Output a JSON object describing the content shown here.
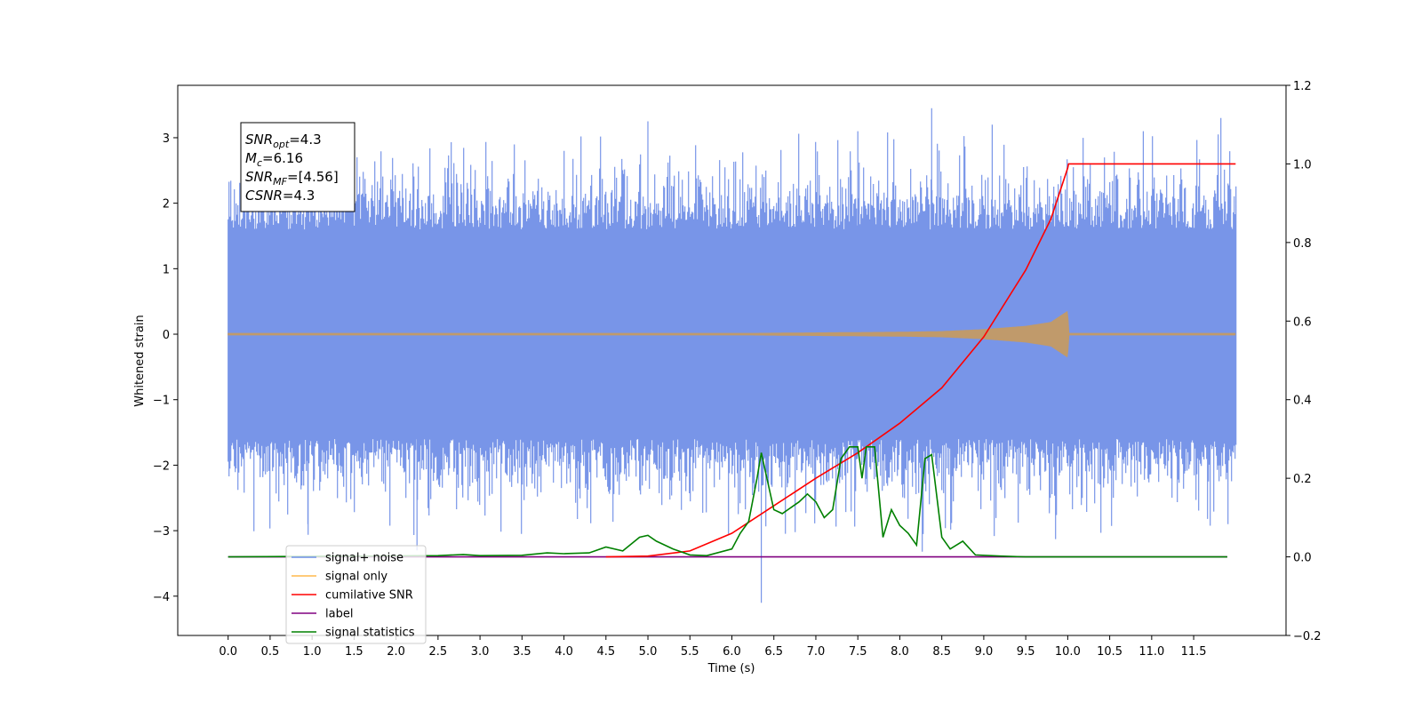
{
  "chart_data": {
    "type": "line",
    "xlabel": "Time (s)",
    "ylabel": "Whitened strain",
    "xlim": [
      -0.6,
      12.6
    ],
    "ylim": [
      -4.6,
      3.8
    ],
    "y2lim": [
      -0.2,
      1.2
    ],
    "x_ticks": [
      "0.0",
      "0.5",
      "1.0",
      "1.5",
      "2.0",
      "2.5",
      "3.0",
      "3.5",
      "4.0",
      "4.5",
      "5.0",
      "5.5",
      "6.0",
      "6.5",
      "7.0",
      "7.5",
      "8.0",
      "8.5",
      "9.0",
      "9.5",
      "10.0",
      "10.5",
      "11.0",
      "11.5"
    ],
    "y_ticks": [
      "3",
      "2",
      "1",
      "0",
      "−1",
      "−2",
      "−3",
      "−4"
    ],
    "y2_ticks": [
      "1.2",
      "1.0",
      "0.8",
      "0.6",
      "0.4",
      "0.2",
      "0.0",
      "−0.2"
    ],
    "annotation": {
      "lines": [
        {
          "base": "SNR",
          "sub": "opt",
          "value": "=4.3"
        },
        {
          "base": "M",
          "sub": "c",
          "value": "=6.16"
        },
        {
          "base": "SNR",
          "sub": "MF",
          "value": "=[4.56]"
        },
        {
          "base": "CSNR",
          "sub": "",
          "value": "=4.3"
        }
      ]
    },
    "legend": {
      "position": "lower-left",
      "entries": [
        {
          "label": "signal+ noise",
          "color": "#6f8fe6"
        },
        {
          "label": "signal only",
          "color": "#ffb84d"
        },
        {
          "label": "cumilative SNR",
          "color": "#ff0000"
        },
        {
          "label": "label",
          "color": "#800080"
        },
        {
          "label": "signal statistics",
          "color": "#008000"
        }
      ]
    },
    "series": [
      {
        "name": "signal+ noise",
        "color": "#7895e8",
        "axis": "left",
        "x_start": 0.0,
        "x_end": 12.0,
        "envelope_upper": 1.6,
        "envelope_lower": -1.6,
        "max": 3.45,
        "min": -4.1
      },
      {
        "name": "signal only",
        "color": "#c09a6b",
        "axis": "left",
        "x": [
          0.0,
          5.0,
          6.0,
          7.0,
          8.0,
          8.5,
          9.0,
          9.5,
          9.8,
          10.0,
          10.01,
          12.0
        ],
        "amplitude": [
          0.0,
          0.005,
          0.01,
          0.02,
          0.03,
          0.04,
          0.07,
          0.12,
          0.18,
          0.35,
          0.0,
          0.0
        ]
      },
      {
        "name": "cumilative SNR",
        "color": "#ff0000",
        "axis": "right",
        "x": [
          4.5,
          5.0,
          5.5,
          6.0,
          6.5,
          7.0,
          7.5,
          8.0,
          8.5,
          9.0,
          9.5,
          9.8,
          10.0,
          10.01,
          12.0
        ],
        "y": [
          0.0,
          0.002,
          0.015,
          0.06,
          0.13,
          0.2,
          0.265,
          0.34,
          0.43,
          0.56,
          0.73,
          0.86,
          0.99,
          1.0,
          1.0
        ]
      },
      {
        "name": "label",
        "color": "#800080",
        "axis": "right",
        "x": [
          0.0,
          11.9
        ],
        "y": [
          0.0,
          0.0
        ]
      },
      {
        "name": "signal statistics",
        "color": "#008000",
        "axis": "right",
        "x": [
          0.0,
          2.5,
          2.8,
          3.0,
          3.5,
          3.8,
          4.0,
          4.3,
          4.5,
          4.7,
          4.9,
          5.0,
          5.1,
          5.3,
          5.5,
          5.7,
          6.0,
          6.1,
          6.2,
          6.3,
          6.35,
          6.5,
          6.6,
          6.8,
          6.9,
          7.0,
          7.1,
          7.2,
          7.3,
          7.4,
          7.5,
          7.55,
          7.6,
          7.7,
          7.8,
          7.9,
          8.0,
          8.1,
          8.2,
          8.3,
          8.38,
          8.5,
          8.6,
          8.75,
          8.9,
          9.2,
          9.5,
          11.9
        ],
        "y": [
          0.0,
          0.003,
          0.006,
          0.003,
          0.004,
          0.01,
          0.008,
          0.01,
          0.025,
          0.015,
          0.05,
          0.055,
          0.04,
          0.02,
          0.005,
          0.003,
          0.02,
          0.06,
          0.09,
          0.2,
          0.265,
          0.12,
          0.11,
          0.14,
          0.16,
          0.14,
          0.1,
          0.12,
          0.25,
          0.28,
          0.28,
          0.2,
          0.28,
          0.28,
          0.05,
          0.12,
          0.08,
          0.06,
          0.03,
          0.25,
          0.26,
          0.05,
          0.02,
          0.04,
          0.005,
          0.002,
          0.0,
          0.0
        ]
      }
    ]
  }
}
